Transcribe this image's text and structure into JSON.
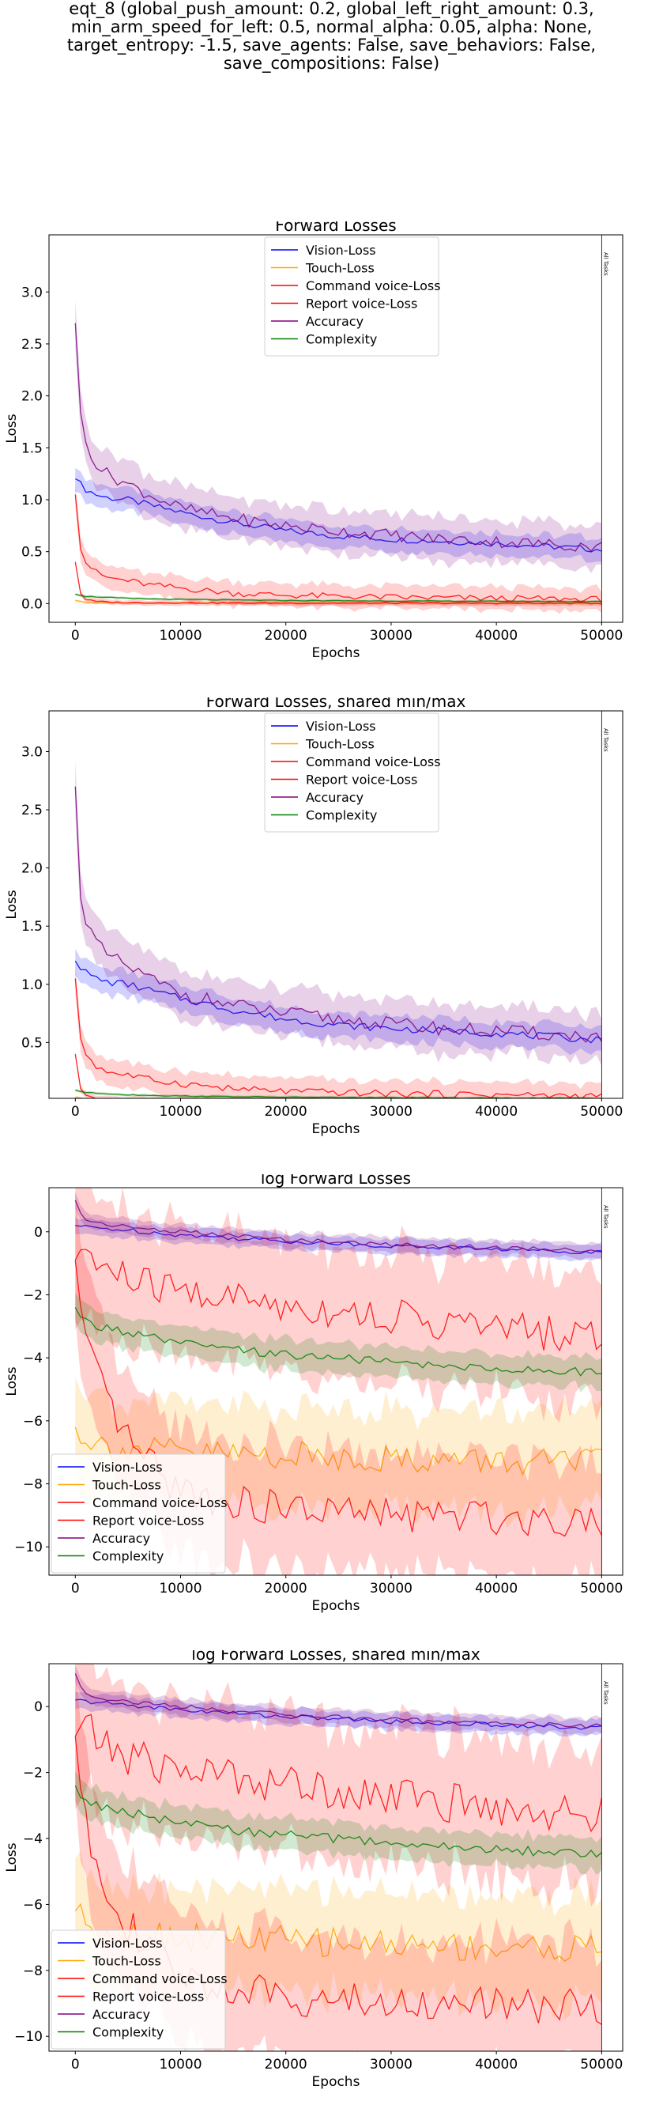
{
  "suptitle_lines": [
    "eqt_8 (global_push_amount: 0.2, global_left_right_amount: 0.3,",
    "min_arm_speed_for_left: 0.5, normal_alpha: 0.05, alpha: None,",
    "target_entropy: -1.5, save_agents: False, save_behaviors: False,",
    "save_compositions: False)"
  ],
  "colors": {
    "Vision-Loss": "#0000ff",
    "Touch-Loss": "#ffa500",
    "Command voice-Loss": "#ff0000",
    "Report voice-Loss": "#ff0000",
    "Accuracy": "#800080",
    "Complexity": "#008000"
  },
  "chart_data": [
    {
      "type": "line",
      "title": "Forward Losses",
      "xlabel": "Epochs",
      "ylabel": "Loss",
      "xlim": [
        -2500,
        52000
      ],
      "ylim": [
        -0.18,
        3.55
      ],
      "xticks": [
        0,
        10000,
        20000,
        30000,
        40000,
        50000
      ],
      "yticks": [
        0.0,
        0.5,
        1.0,
        1.5,
        2.0,
        2.5,
        3.0
      ],
      "ytick_labels": [
        "0.0",
        "0.5",
        "1.0",
        "1.5",
        "2.0",
        "2.5",
        "3.0"
      ],
      "legend_position": "top-center",
      "vline_x": 50000,
      "vline_label": "All Tasks",
      "series": [
        {
          "name": "Vision-Loss",
          "x": [
            0,
            500,
            1000,
            2000,
            3000,
            5000,
            7000,
            10000,
            15000,
            20000,
            25000,
            30000,
            35000,
            40000,
            45000,
            50000
          ],
          "y": [
            1.2,
            1.15,
            1.1,
            1.05,
            1.02,
            1.0,
            0.95,
            0.88,
            0.78,
            0.7,
            0.65,
            0.62,
            0.6,
            0.58,
            0.55,
            0.52
          ],
          "band": 0.09
        },
        {
          "name": "Touch-Loss",
          "x": [
            0,
            1000,
            5000,
            20000,
            50000
          ],
          "y": [
            0.03,
            0.01,
            0.005,
            0.004,
            0.003
          ],
          "band": 0.01
        },
        {
          "name": "Command voice-Loss",
          "x": [
            0,
            500,
            1000,
            2000,
            3000,
            5000,
            7000,
            10000,
            15000,
            20000,
            30000,
            40000,
            50000
          ],
          "y": [
            1.05,
            0.55,
            0.4,
            0.3,
            0.25,
            0.22,
            0.18,
            0.15,
            0.1,
            0.08,
            0.06,
            0.05,
            0.04
          ],
          "band": 0.09
        },
        {
          "name": "Report voice-Loss",
          "x": [
            0,
            500,
            1000,
            2000,
            5000,
            20000,
            50000
          ],
          "y": [
            0.4,
            0.1,
            0.04,
            0.02,
            0.01,
            0.005,
            0.003
          ],
          "band": 0.02
        },
        {
          "name": "Accuracy",
          "x": [
            0,
            500,
            1000,
            2000,
            3000,
            5000,
            7000,
            10000,
            15000,
            20000,
            25000,
            30000,
            35000,
            40000,
            45000,
            50000
          ],
          "y": [
            2.7,
            1.8,
            1.55,
            1.35,
            1.25,
            1.15,
            1.05,
            0.92,
            0.82,
            0.75,
            0.7,
            0.66,
            0.62,
            0.6,
            0.57,
            0.55
          ],
          "band": 0.17
        },
        {
          "name": "Complexity",
          "x": [
            0,
            500,
            1000,
            3000,
            5000,
            10000,
            20000,
            30000,
            50000
          ],
          "y": [
            0.09,
            0.08,
            0.07,
            0.06,
            0.05,
            0.04,
            0.03,
            0.025,
            0.02
          ],
          "band": 0.01
        }
      ]
    },
    {
      "type": "line",
      "title": "Forward Losses, shared min/max",
      "xlabel": "Epochs",
      "ylabel": "Loss",
      "xlim": [
        -2500,
        52000
      ],
      "ylim": [
        0.02,
        3.35
      ],
      "xticks": [
        0,
        10000,
        20000,
        30000,
        40000,
        50000
      ],
      "yticks": [
        0.5,
        1.0,
        1.5,
        2.0,
        2.5,
        3.0
      ],
      "ytick_labels": [
        "0.5",
        "1.0",
        "1.5",
        "2.0",
        "2.5",
        "3.0"
      ],
      "legend_position": "top-center",
      "vline_x": 50000,
      "vline_label": "All Tasks",
      "series": [
        {
          "name": "Vision-Loss",
          "x": [
            0,
            500,
            1000,
            2000,
            3000,
            5000,
            7000,
            10000,
            15000,
            20000,
            25000,
            30000,
            35000,
            40000,
            45000,
            50000
          ],
          "y": [
            1.2,
            1.15,
            1.1,
            1.05,
            1.02,
            1.0,
            0.95,
            0.88,
            0.78,
            0.7,
            0.65,
            0.62,
            0.6,
            0.58,
            0.55,
            0.52
          ],
          "band": 0.09
        },
        {
          "name": "Touch-Loss",
          "x": [
            0,
            1000,
            5000,
            20000,
            50000
          ],
          "y": [
            0.03,
            0.01,
            0.005,
            0.004,
            0.003
          ],
          "band": 0.01
        },
        {
          "name": "Command voice-Loss",
          "x": [
            0,
            500,
            1000,
            2000,
            3000,
            5000,
            7000,
            10000,
            15000,
            20000,
            30000,
            40000,
            50000
          ],
          "y": [
            1.05,
            0.55,
            0.4,
            0.3,
            0.25,
            0.22,
            0.18,
            0.15,
            0.1,
            0.08,
            0.06,
            0.05,
            0.04
          ],
          "band": 0.09
        },
        {
          "name": "Report voice-Loss",
          "x": [
            0,
            500,
            1000,
            2000,
            5000,
            20000,
            50000
          ],
          "y": [
            0.4,
            0.1,
            0.04,
            0.02,
            0.01,
            0.005,
            0.003
          ],
          "band": 0.02
        },
        {
          "name": "Accuracy",
          "x": [
            0,
            500,
            1000,
            2000,
            3000,
            5000,
            7000,
            10000,
            15000,
            20000,
            25000,
            30000,
            35000,
            40000,
            45000,
            50000
          ],
          "y": [
            2.7,
            1.8,
            1.55,
            1.35,
            1.25,
            1.15,
            1.05,
            0.92,
            0.82,
            0.75,
            0.7,
            0.66,
            0.62,
            0.6,
            0.57,
            0.55
          ],
          "band": 0.17
        },
        {
          "name": "Complexity",
          "x": [
            0,
            500,
            1000,
            3000,
            5000,
            10000,
            20000,
            30000,
            50000
          ],
          "y": [
            0.09,
            0.08,
            0.07,
            0.06,
            0.05,
            0.04,
            0.03,
            0.025,
            0.02
          ],
          "band": 0.01
        }
      ]
    },
    {
      "type": "line",
      "title": "log Forward Losses",
      "xlabel": "Epochs",
      "ylabel": "Loss",
      "xlim": [
        -2500,
        52000
      ],
      "ylim": [
        -10.9,
        1.4
      ],
      "xticks": [
        0,
        10000,
        20000,
        30000,
        40000,
        50000
      ],
      "yticks": [
        -10,
        -8,
        -6,
        -4,
        -2,
        0
      ],
      "ytick_labels": [
        "−10",
        "−8",
        "−6",
        "−4",
        "−2",
        "0"
      ],
      "legend_position": "lower-left",
      "vline_x": 50000,
      "vline_label": "All Tasks",
      "series": [
        {
          "name": "Vision-Loss",
          "x": [
            0,
            1000,
            3000,
            5000,
            10000,
            20000,
            30000,
            40000,
            50000
          ],
          "y": [
            0.2,
            0.15,
            0.1,
            0.05,
            -0.1,
            -0.3,
            -0.45,
            -0.55,
            -0.65
          ],
          "band": 0.2
        },
        {
          "name": "Touch-Loss",
          "x": [
            0,
            1000,
            2000,
            3000,
            5000,
            10000,
            20000,
            30000,
            40000,
            50000
          ],
          "y": [
            -6.2,
            -6.5,
            -6.7,
            -6.8,
            -6.9,
            -7.0,
            -7.1,
            -7.2,
            -7.3,
            -7.35
          ],
          "band": 1.3
        },
        {
          "name": "Command voice-Loss",
          "x": [
            0,
            500,
            1000,
            2000,
            3000,
            5000,
            7000,
            10000,
            15000,
            20000,
            25000,
            30000,
            35000,
            40000,
            45000,
            50000
          ],
          "y": [
            -0.9,
            -0.4,
            -0.6,
            -1.0,
            -1.2,
            -1.5,
            -1.7,
            -1.9,
            -2.1,
            -2.35,
            -2.5,
            -2.7,
            -2.9,
            -3.05,
            -3.2,
            -3.35
          ],
          "band": 1.7
        },
        {
          "name": "Report voice-Loss",
          "x": [
            0,
            500,
            1000,
            2000,
            3000,
            5000,
            7000,
            10000,
            15000,
            20000,
            25000,
            30000,
            35000,
            40000,
            45000,
            50000
          ],
          "y": [
            -0.9,
            -2.5,
            -3.6,
            -4.6,
            -5.4,
            -6.6,
            -7.4,
            -8.2,
            -8.6,
            -8.8,
            -8.9,
            -9.0,
            -9.0,
            -9.05,
            -9.1,
            -9.1
          ],
          "band": 1.6
        },
        {
          "name": "Accuracy",
          "x": [
            0,
            500,
            1000,
            2000,
            3000,
            5000,
            10000,
            20000,
            30000,
            40000,
            50000
          ],
          "y": [
            1.0,
            0.6,
            0.4,
            0.3,
            0.25,
            0.15,
            0.0,
            -0.25,
            -0.4,
            -0.5,
            -0.6
          ],
          "band": 0.2
        },
        {
          "name": "Complexity",
          "x": [
            0,
            500,
            1000,
            2000,
            3000,
            5000,
            7000,
            10000,
            15000,
            20000,
            25000,
            30000,
            35000,
            40000,
            45000,
            50000
          ],
          "y": [
            -2.4,
            -2.7,
            -2.85,
            -3.0,
            -3.05,
            -3.2,
            -3.35,
            -3.55,
            -3.75,
            -3.9,
            -4.0,
            -4.15,
            -4.25,
            -4.35,
            -4.4,
            -4.5
          ],
          "band": 0.4
        }
      ]
    },
    {
      "type": "line",
      "title": "log Forward Losses, shared min/max",
      "xlabel": "Epochs",
      "ylabel": "Loss",
      "xlim": [
        -2500,
        52000
      ],
      "ylim": [
        -10.45,
        1.3
      ],
      "xticks": [
        0,
        10000,
        20000,
        30000,
        40000,
        50000
      ],
      "yticks": [
        -10,
        -8,
        -6,
        -4,
        -2,
        0
      ],
      "ytick_labels": [
        "−10",
        "−8",
        "−6",
        "−4",
        "−2",
        "0"
      ],
      "legend_position": "lower-left",
      "vline_x": 50000,
      "vline_label": "All Tasks",
      "series": [
        {
          "name": "Vision-Loss",
          "x": [
            0,
            1000,
            3000,
            5000,
            10000,
            20000,
            30000,
            40000,
            50000
          ],
          "y": [
            0.2,
            0.15,
            0.1,
            0.05,
            -0.1,
            -0.3,
            -0.45,
            -0.55,
            -0.65
          ],
          "band": 0.2
        },
        {
          "name": "Touch-Loss",
          "x": [
            0,
            1000,
            2000,
            3000,
            5000,
            10000,
            20000,
            30000,
            40000,
            50000
          ],
          "y": [
            -6.2,
            -6.5,
            -6.7,
            -6.8,
            -6.9,
            -7.0,
            -7.1,
            -7.2,
            -7.3,
            -7.35
          ],
          "band": 1.3
        },
        {
          "name": "Command voice-Loss",
          "x": [
            0,
            500,
            1000,
            2000,
            3000,
            5000,
            7000,
            10000,
            15000,
            20000,
            25000,
            30000,
            35000,
            40000,
            45000,
            50000
          ],
          "y": [
            -0.9,
            -0.4,
            -0.6,
            -1.0,
            -1.2,
            -1.5,
            -1.7,
            -1.9,
            -2.1,
            -2.35,
            -2.5,
            -2.7,
            -2.9,
            -3.05,
            -3.2,
            -3.35
          ],
          "band": 1.7
        },
        {
          "name": "Report voice-Loss",
          "x": [
            0,
            500,
            1000,
            2000,
            3000,
            5000,
            7000,
            10000,
            15000,
            20000,
            25000,
            30000,
            35000,
            40000,
            45000,
            50000
          ],
          "y": [
            -0.9,
            -2.5,
            -3.6,
            -4.6,
            -5.4,
            -6.6,
            -7.4,
            -8.2,
            -8.6,
            -8.8,
            -8.9,
            -9.0,
            -9.0,
            -9.05,
            -9.1,
            -9.1
          ],
          "band": 1.6
        },
        {
          "name": "Accuracy",
          "x": [
            0,
            500,
            1000,
            2000,
            3000,
            5000,
            10000,
            20000,
            30000,
            40000,
            50000
          ],
          "y": [
            1.0,
            0.6,
            0.4,
            0.3,
            0.25,
            0.15,
            0.0,
            -0.25,
            -0.4,
            -0.5,
            -0.6
          ],
          "band": 0.2
        },
        {
          "name": "Complexity",
          "x": [
            0,
            500,
            1000,
            2000,
            3000,
            5000,
            7000,
            10000,
            15000,
            20000,
            25000,
            30000,
            35000,
            40000,
            45000,
            50000
          ],
          "y": [
            -2.4,
            -2.7,
            -2.85,
            -3.0,
            -3.05,
            -3.2,
            -3.35,
            -3.55,
            -3.75,
            -3.9,
            -4.0,
            -4.15,
            -4.25,
            -4.35,
            -4.4,
            -4.5
          ],
          "band": 0.4
        }
      ]
    }
  ]
}
